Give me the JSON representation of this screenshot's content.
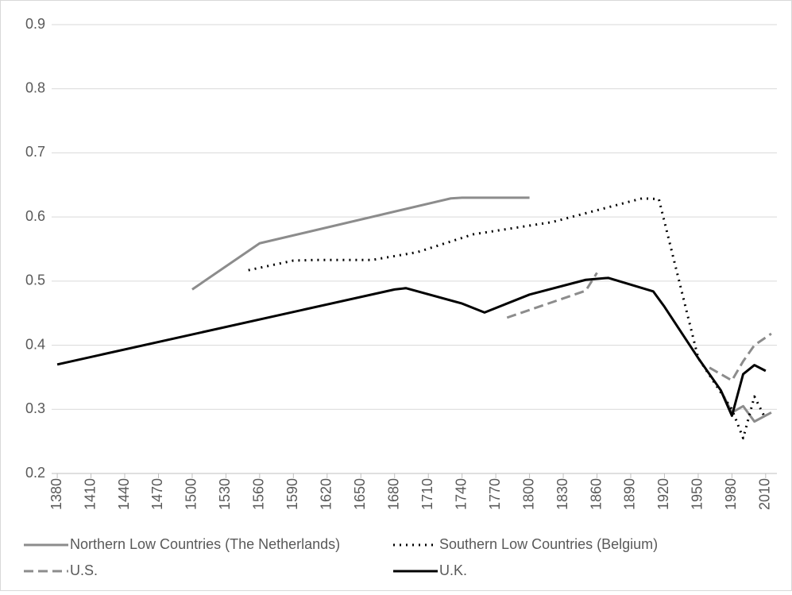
{
  "chart_data": {
    "type": "line",
    "ylim": [
      0.2,
      0.9
    ],
    "yticks": [
      0.2,
      0.3,
      0.4,
      0.5,
      0.6,
      0.7,
      0.8,
      0.9
    ],
    "xlim": [
      1375,
      2020
    ],
    "xticks": [
      1380,
      1410,
      1440,
      1470,
      1500,
      1530,
      1560,
      1590,
      1620,
      1650,
      1680,
      1710,
      1740,
      1770,
      1800,
      1830,
      1860,
      1890,
      1920,
      1950,
      1980,
      2010
    ],
    "grid": true,
    "legend": "bottom",
    "series": [
      {
        "name": "Northern Low Countries (The Netherlands)",
        "color": "#8c8c8c",
        "dash": "solid",
        "x": [
          1500,
          1560,
          1730,
          1740,
          1800,
          null,
          1970,
          1980,
          1990,
          2000,
          2015
        ],
        "values": [
          0.487,
          0.559,
          0.629,
          0.63,
          0.63,
          null,
          0.33,
          0.295,
          0.305,
          0.281,
          0.295
        ]
      },
      {
        "name": "Southern Low Countries (Belgium)",
        "color": "#000000",
        "dash": "dotted",
        "x": [
          1550,
          1590,
          1610,
          1660,
          1700,
          1750,
          1820,
          1900,
          1915,
          1950,
          1980,
          1990,
          2000,
          2010
        ],
        "values": [
          0.517,
          0.532,
          0.533,
          0.533,
          0.545,
          0.573,
          0.592,
          0.629,
          0.628,
          0.38,
          0.3,
          0.255,
          0.32,
          0.285
        ]
      },
      {
        "name": "U.S.",
        "color": "#8c8c8c",
        "dash": "dashed",
        "x": [
          1780,
          1850,
          1860,
          null,
          1960,
          1970,
          1980,
          1990,
          2000,
          2015
        ],
        "values": [
          0.443,
          0.485,
          0.513,
          null,
          0.365,
          0.355,
          0.345,
          0.375,
          0.4,
          0.418
        ]
      },
      {
        "name": "U.K.",
        "color": "#000000",
        "dash": "solid",
        "x": [
          1380,
          1680,
          1690,
          1740,
          1760,
          1800,
          1850,
          1870,
          1910,
          1920,
          1950,
          1970,
          1980,
          1990,
          2000,
          2010
        ],
        "values": [
          0.37,
          0.487,
          0.489,
          0.465,
          0.451,
          0.479,
          0.502,
          0.505,
          0.484,
          0.46,
          0.38,
          0.33,
          0.29,
          0.355,
          0.369,
          0.36
        ]
      }
    ]
  }
}
